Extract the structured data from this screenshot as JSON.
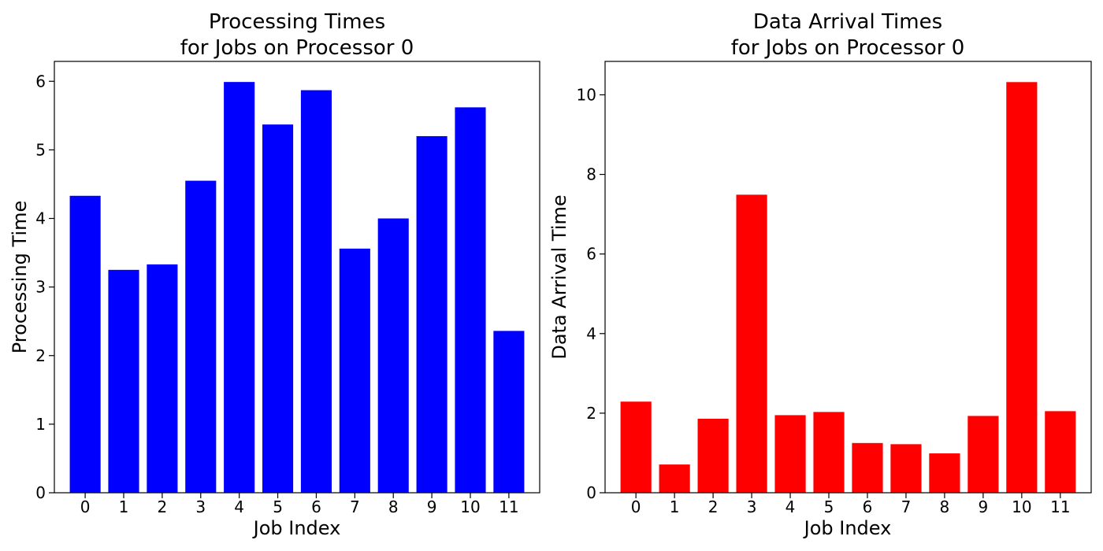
{
  "chart_data": [
    {
      "type": "bar",
      "title_lines": [
        "Processing Times",
        "for Jobs on Processor 0"
      ],
      "xlabel": "Job Index",
      "ylabel": "Processing Time",
      "categories": [
        "0",
        "1",
        "2",
        "3",
        "4",
        "5",
        "6",
        "7",
        "8",
        "9",
        "10",
        "11"
      ],
      "values": [
        4.33,
        3.25,
        3.33,
        4.55,
        5.99,
        5.37,
        5.87,
        3.56,
        4.0,
        5.2,
        5.62,
        2.36
      ],
      "ylim": [
        0,
        6.29
      ],
      "yticks": [
        0,
        1,
        2,
        3,
        4,
        5,
        6
      ],
      "color": "#0000ff",
      "grid": false
    },
    {
      "type": "bar",
      "title_lines": [
        "Data Arrival Times",
        "for Jobs on Processor 0"
      ],
      "xlabel": "Job Index",
      "ylabel": "Data Arrival Time",
      "categories": [
        "0",
        "1",
        "2",
        "3",
        "4",
        "5",
        "6",
        "7",
        "8",
        "9",
        "10",
        "11"
      ],
      "values": [
        2.29,
        0.71,
        1.86,
        7.49,
        1.95,
        2.03,
        1.25,
        1.22,
        0.99,
        1.93,
        10.32,
        2.05
      ],
      "ylim": [
        0,
        10.84
      ],
      "yticks": [
        0,
        2,
        4,
        6,
        8,
        10
      ],
      "color": "#ff0000",
      "grid": false
    }
  ]
}
